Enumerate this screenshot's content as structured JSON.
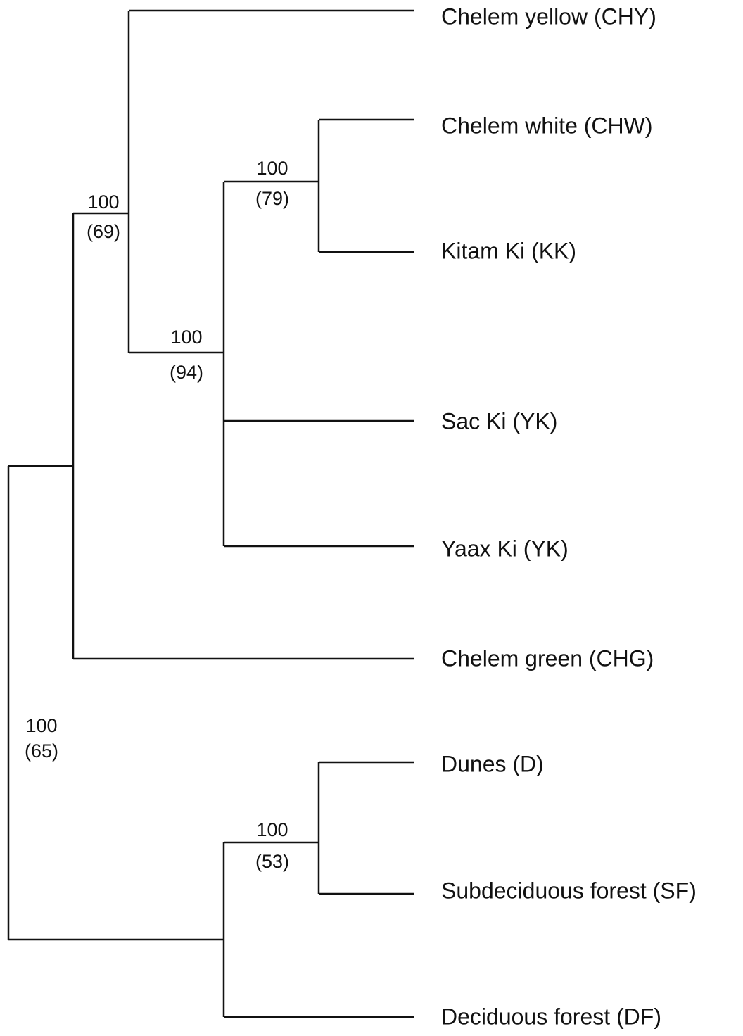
{
  "leaves": [
    "Chelem yellow (CHY)",
    "Chelem white (CHW)",
    "Kitam Ki (KK)",
    "Sac Ki (YK)",
    "Yaax Ki (YK)",
    "Chelem green (CHG)",
    "Dunes (D)",
    "Subdeciduous forest (SF)",
    "Deciduous forest (DF)"
  ],
  "nodes": [
    {
      "support": "100",
      "secondary": "(69)"
    },
    {
      "support": "100",
      "secondary": "(94)"
    },
    {
      "support": "100",
      "secondary": "(79)"
    },
    {
      "support": "100",
      "secondary": "(65)"
    },
    {
      "support": "100",
      "secondary": "(53)"
    }
  ]
}
